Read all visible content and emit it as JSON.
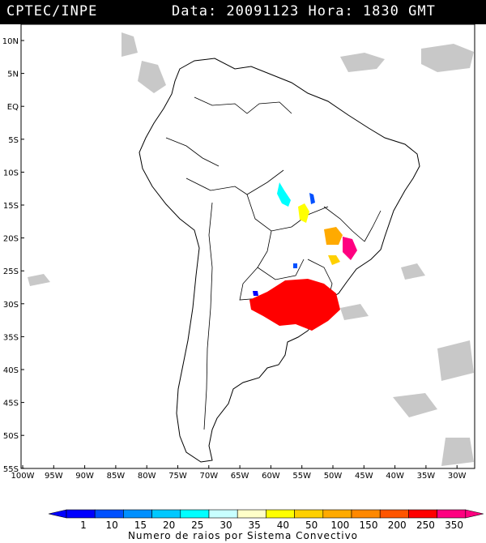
{
  "header": {
    "left": "CPTEC/INPE",
    "right": "Data: 20091123 Hora: 1830 GMT"
  },
  "axes": {
    "lat_labels": [
      "10N",
      "5N",
      "EQ",
      "5S",
      "10S",
      "15S",
      "20S",
      "25S",
      "30S",
      "35S",
      "40S",
      "45S",
      "50S",
      "55S"
    ],
    "lon_labels": [
      "100W",
      "95W",
      "90W",
      "85W",
      "80W",
      "75W",
      "70W",
      "65W",
      "60W",
      "55W",
      "50W",
      "45W",
      "40W",
      "35W",
      "30W"
    ]
  },
  "legend": {
    "values": [
      "1",
      "10",
      "15",
      "20",
      "25",
      "30",
      "35",
      "40",
      "50",
      "100",
      "150",
      "200",
      "250",
      "350"
    ],
    "colors": [
      "#0000ff",
      "#0050ff",
      "#0090ff",
      "#00c8ff",
      "#00ffff",
      "#c8ffff",
      "#ffffc8",
      "#ffff00",
      "#ffd000",
      "#ffaa00",
      "#ff8800",
      "#ff5500",
      "#ff0000",
      "#ff0080"
    ],
    "caption": "Numero de raios por Sistema Convectivo"
  },
  "colors": {
    "cloud": "#c8c8c8",
    "coast": "#000000"
  }
}
